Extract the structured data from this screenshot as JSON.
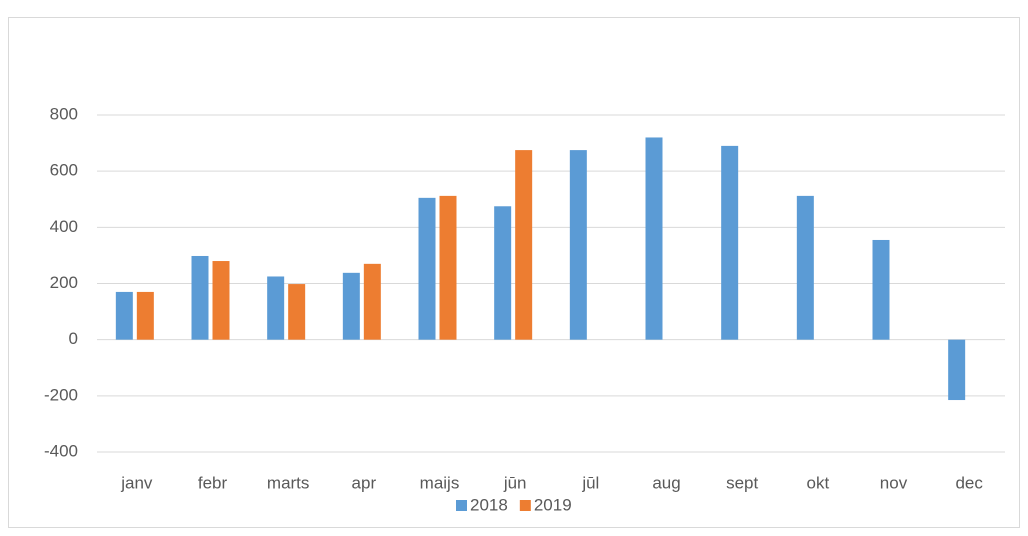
{
  "chart_data": {
    "type": "bar",
    "categories": [
      "janv",
      "febr",
      "marts",
      "apr",
      "maijs",
      "jūn",
      "jūl",
      "aug",
      "sept",
      "okt",
      "nov",
      "dec"
    ],
    "series": [
      {
        "name": "2018",
        "color": "#5b9bd5",
        "values": [
          170,
          298,
          225,
          238,
          505,
          475,
          675,
          720,
          690,
          512,
          355,
          -215
        ]
      },
      {
        "name": "2019",
        "color": "#ed7d31",
        "values": [
          170,
          280,
          198,
          270,
          512,
          675,
          null,
          null,
          null,
          null,
          null,
          null
        ]
      }
    ],
    "ylim": [
      -400,
      800
    ],
    "yticks": [
      -400,
      -200,
      0,
      200,
      400,
      600,
      800
    ],
    "grid": true,
    "legend": "bottom"
  }
}
